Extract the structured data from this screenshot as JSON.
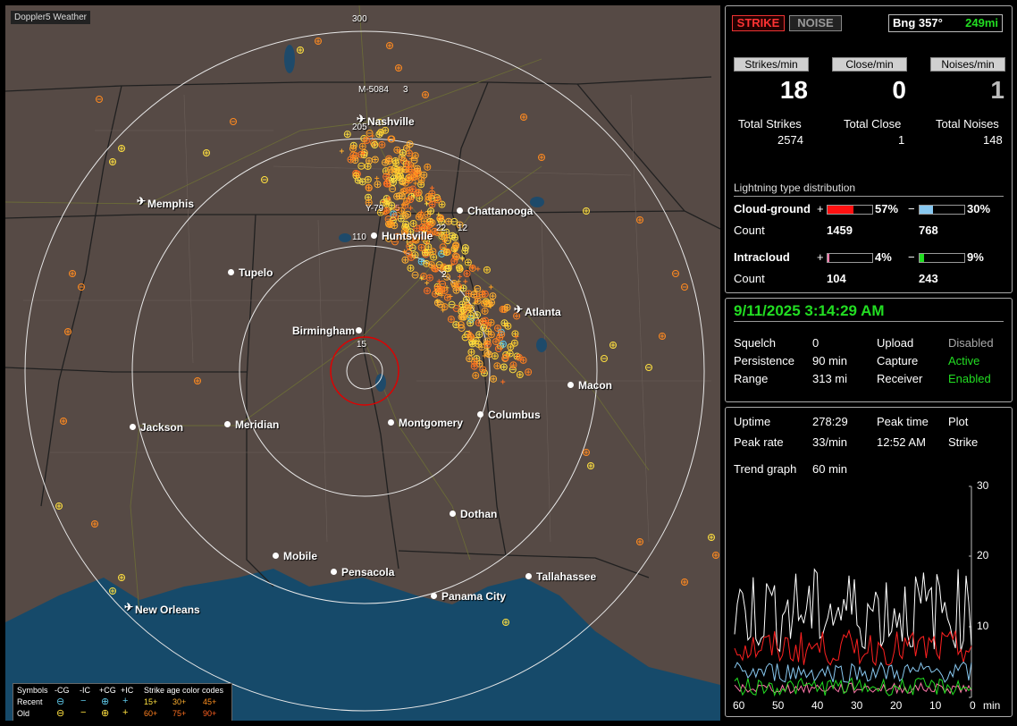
{
  "app_title": "Doppler5 Weather",
  "map": {
    "cities": [
      {
        "name": "Nashville",
        "airport": true
      },
      {
        "name": "Memphis",
        "airport": true
      },
      {
        "name": "Chattanooga",
        "airport": false
      },
      {
        "name": "Huntsville",
        "airport": false
      },
      {
        "name": "Tupelo",
        "airport": false
      },
      {
        "name": "Birmingham",
        "airport": false
      },
      {
        "name": "Atlanta",
        "airport": true
      },
      {
        "name": "Macon",
        "airport": false
      },
      {
        "name": "Jackson",
        "airport": false
      },
      {
        "name": "Meridian",
        "airport": false
      },
      {
        "name": "Montgomery",
        "airport": false
      },
      {
        "name": "Columbus",
        "airport": false
      },
      {
        "name": "Dothan",
        "airport": false
      },
      {
        "name": "Mobile",
        "airport": false
      },
      {
        "name": "Pensacola",
        "airport": false
      },
      {
        "name": "Tallahassee",
        "airport": false
      },
      {
        "name": "Panama City",
        "airport": false
      },
      {
        "name": "New Orleans",
        "airport": true
      }
    ],
    "range_rings": [
      "300",
      "205",
      "110",
      "15"
    ],
    "tags": [
      "M-5084",
      "3",
      "Y-79",
      "5",
      "22",
      "12",
      "2"
    ]
  },
  "legend": {
    "row_title": "Symbols",
    "cols": [
      "-CG",
      "-IC",
      "+CG",
      "+IC"
    ],
    "age_title": "Strike age color codes",
    "recent_label": "Recent",
    "old_label": "Old",
    "recent_ages": [
      "15+",
      "30+",
      "45+"
    ],
    "old_ages": [
      "60+",
      "75+",
      "90+"
    ]
  },
  "header": {
    "strike_btn": "STRIKE",
    "noise_btn": "NOISE",
    "bearing_label": "Bng 357°",
    "bearing_dist": "249mi"
  },
  "rates": {
    "strikes_label": "Strikes/min",
    "close_label": "Close/min",
    "noises_label": "Noises/min",
    "strikes": "18",
    "close": "0",
    "noises": "1",
    "total_strikes_label": "Total Strikes",
    "total_close_label": "Total Close",
    "total_noises_label": "Total Noises",
    "total_strikes": "2574",
    "total_close": "1",
    "total_noises": "148"
  },
  "distribution": {
    "title": "Lightning type distribution",
    "cg_label": "Cloud-ground",
    "ic_label": "Intracloud",
    "count_label": "Count",
    "plus": "+",
    "minus": "−",
    "cg_pos_pct": "57%",
    "cg_neg_pct": "30%",
    "cg_pos_count": "1459",
    "cg_neg_count": "768",
    "ic_pos_pct": "4%",
    "ic_neg_pct": "9%",
    "ic_pos_count": "104",
    "ic_neg_count": "243",
    "cg_pos_frac": 0.57,
    "cg_neg_frac": 0.3,
    "ic_pos_frac": 0.04,
    "ic_neg_frac": 0.09
  },
  "status": {
    "datetime": "9/11/2025 3:14:29 AM",
    "squelch_label": "Squelch",
    "squelch": "0",
    "persistence_label": "Persistence",
    "persistence": "90 min",
    "range_label": "Range",
    "range": "313 mi",
    "upload_label": "Upload",
    "upload": "Disabled",
    "capture_label": "Capture",
    "capture": "Active",
    "receiver_label": "Receiver",
    "receiver": "Enabled"
  },
  "trend": {
    "uptime_label": "Uptime",
    "uptime": "278:29",
    "peak_time_label": "Peak time",
    "peak_time": "12:52 AM",
    "plot_label": "Plot",
    "plot": "Strike",
    "peak_rate_label": "Peak rate",
    "peak_rate": "33/min",
    "graph_label": "Trend graph",
    "graph_span": "60 min",
    "x_ticks": [
      "60",
      "50",
      "40",
      "30",
      "20",
      "10",
      "0"
    ],
    "x_unit": "min",
    "y_ticks": [
      "30",
      "20",
      "10"
    ]
  },
  "colors": {
    "accent_green": "#22dd22",
    "strike_red": "#ff3333",
    "cg_pos": "#ff1111",
    "cg_neg": "#88c8f0",
    "ic_pos": "#ff77aa",
    "ic_neg": "#22dd22",
    "strike_yellow": "#ffe040",
    "strike_orange": "#ff9a20"
  }
}
